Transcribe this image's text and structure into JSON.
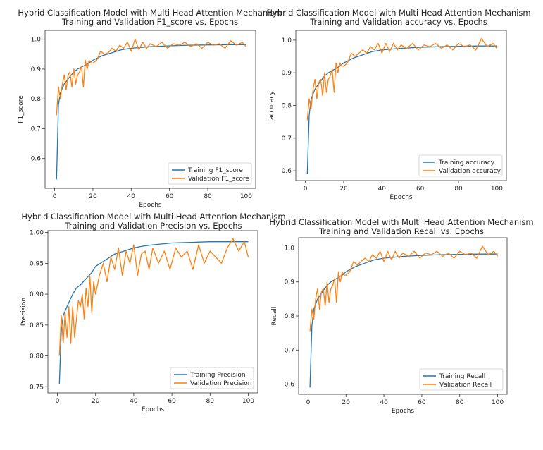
{
  "chart_data": [
    {
      "type": "line",
      "title": "Hybrid Classification Model with Multi Head Attention Mechanism",
      "subtitle": "Training and Validation F1_score vs. Epochs",
      "xlabel": "Epochs",
      "ylabel": "F1_score",
      "xlim": [
        -5,
        105
      ],
      "ylim": [
        0.5,
        1.03
      ],
      "xticks": [
        0,
        20,
        40,
        60,
        80,
        100
      ],
      "yticks": [
        0.6,
        0.7,
        0.8,
        0.9,
        1.0
      ],
      "ytick_labels": [
        "0.6",
        "0.7",
        "0.8",
        "0.9",
        "1.0"
      ],
      "legend": "lower-right",
      "series": [
        {
          "name": "Training F1_score",
          "color": "#1f77b4",
          "x": [
            1,
            2,
            3,
            5,
            8,
            10,
            12,
            15,
            18,
            20,
            25,
            30,
            35,
            40,
            50,
            60,
            70,
            80,
            90,
            100
          ],
          "values": [
            0.53,
            0.78,
            0.82,
            0.85,
            0.875,
            0.89,
            0.9,
            0.91,
            0.92,
            0.93,
            0.945,
            0.955,
            0.965,
            0.97,
            0.975,
            0.978,
            0.98,
            0.981,
            0.982,
            0.982
          ]
        },
        {
          "name": "Validation F1_score",
          "color": "#ff7f0e",
          "x": [
            1,
            2,
            3,
            4,
            5,
            6,
            7,
            8,
            9,
            10,
            11,
            12,
            13,
            14,
            15,
            16,
            17,
            18,
            19,
            20,
            22,
            24,
            26,
            28,
            30,
            32,
            34,
            36,
            38,
            40,
            42,
            44,
            46,
            48,
            50,
            53,
            56,
            59,
            62,
            65,
            68,
            71,
            74,
            77,
            80,
            83,
            86,
            89,
            92,
            95,
            98,
            100
          ],
          "values": [
            0.745,
            0.84,
            0.8,
            0.85,
            0.88,
            0.83,
            0.88,
            0.89,
            0.84,
            0.9,
            0.85,
            0.88,
            0.89,
            0.91,
            0.84,
            0.93,
            0.9,
            0.93,
            0.92,
            0.92,
            0.93,
            0.96,
            0.95,
            0.955,
            0.97,
            0.96,
            0.98,
            0.97,
            0.99,
            0.96,
            1.0,
            0.965,
            0.99,
            0.97,
            0.985,
            0.975,
            0.99,
            0.97,
            0.985,
            0.98,
            0.99,
            0.975,
            0.985,
            0.97,
            0.99,
            0.98,
            0.985,
            0.97,
            0.995,
            0.98,
            0.99,
            0.975
          ]
        }
      ]
    },
    {
      "type": "line",
      "title": "Hybrid Classification Model with Multi Head Attention Mechanism",
      "subtitle": "Training and Validation accuracy vs. Epochs",
      "xlabel": "Epochs",
      "ylabel": "accuracy",
      "xlim": [
        -5,
        105
      ],
      "ylim": [
        0.57,
        1.03
      ],
      "xticks": [
        0,
        20,
        40,
        60,
        80,
        100
      ],
      "yticks": [
        0.6,
        0.7,
        0.8,
        0.9,
        1.0
      ],
      "ytick_labels": [
        "0.6",
        "0.7",
        "0.8",
        "0.9",
        "1.0"
      ],
      "legend": "lower-right",
      "series": [
        {
          "name": "Training accuracy",
          "color": "#1f77b4",
          "x": [
            1,
            2,
            3,
            5,
            8,
            10,
            12,
            15,
            18,
            20,
            25,
            30,
            35,
            40,
            50,
            60,
            70,
            80,
            90,
            100
          ],
          "values": [
            0.59,
            0.77,
            0.82,
            0.85,
            0.875,
            0.89,
            0.9,
            0.91,
            0.92,
            0.93,
            0.945,
            0.955,
            0.965,
            0.97,
            0.975,
            0.978,
            0.98,
            0.981,
            0.982,
            0.982
          ]
        },
        {
          "name": "Validation accuracy",
          "color": "#ff7f0e",
          "x": [
            1,
            2,
            3,
            4,
            5,
            6,
            7,
            8,
            9,
            10,
            11,
            12,
            13,
            14,
            15,
            16,
            17,
            18,
            19,
            20,
            22,
            24,
            26,
            28,
            30,
            32,
            34,
            36,
            38,
            40,
            42,
            44,
            46,
            48,
            50,
            53,
            56,
            59,
            62,
            65,
            68,
            71,
            74,
            77,
            80,
            83,
            86,
            89,
            92,
            95,
            98,
            100
          ],
          "values": [
            0.755,
            0.82,
            0.79,
            0.85,
            0.88,
            0.82,
            0.87,
            0.88,
            0.83,
            0.9,
            0.84,
            0.88,
            0.89,
            0.91,
            0.84,
            0.93,
            0.9,
            0.93,
            0.92,
            0.92,
            0.93,
            0.96,
            0.95,
            0.96,
            0.97,
            0.96,
            0.98,
            0.97,
            0.99,
            0.96,
            0.99,
            0.965,
            0.99,
            0.97,
            0.985,
            0.975,
            0.99,
            0.97,
            0.985,
            0.98,
            0.99,
            0.975,
            0.985,
            0.97,
            0.99,
            0.98,
            0.985,
            0.97,
            1.005,
            0.98,
            0.99,
            0.975
          ]
        }
      ]
    },
    {
      "type": "line",
      "title": "Hybrid Classification Model with Multi Head Attention Mechanism",
      "subtitle": "Training and Validation Precision vs. Epochs",
      "xlabel": "Epochs",
      "ylabel": "Precision",
      "xlim": [
        -5,
        105
      ],
      "ylim": [
        0.74,
        1.003
      ],
      "xticks": [
        0,
        20,
        40,
        60,
        80,
        100
      ],
      "yticks": [
        0.75,
        0.8,
        0.85,
        0.9,
        0.95,
        1.0
      ],
      "ytick_labels": [
        "0.75",
        "0.80",
        "0.85",
        "0.90",
        "0.95",
        "1.00"
      ],
      "legend": "lower-right",
      "series": [
        {
          "name": "Training Precision",
          "color": "#1f77b4",
          "x": [
            1,
            2,
            3,
            5,
            8,
            10,
            12,
            15,
            18,
            20,
            25,
            30,
            35,
            40,
            45,
            50,
            60,
            70,
            80,
            90,
            100
          ],
          "values": [
            0.755,
            0.84,
            0.865,
            0.88,
            0.9,
            0.91,
            0.915,
            0.925,
            0.935,
            0.945,
            0.955,
            0.965,
            0.97,
            0.975,
            0.978,
            0.98,
            0.983,
            0.984,
            0.985,
            0.985,
            0.985
          ]
        },
        {
          "name": "Validation Precision",
          "color": "#ff7f0e",
          "x": [
            1,
            2,
            3,
            4,
            5,
            6,
            7,
            8,
            9,
            10,
            11,
            12,
            13,
            14,
            15,
            16,
            17,
            18,
            19,
            20,
            22,
            24,
            26,
            28,
            30,
            32,
            34,
            36,
            38,
            40,
            42,
            44,
            46,
            48,
            50,
            53,
            56,
            59,
            62,
            65,
            68,
            71,
            74,
            77,
            80,
            83,
            86,
            89,
            92,
            95,
            98,
            100
          ],
          "values": [
            0.8,
            0.865,
            0.82,
            0.87,
            0.83,
            0.88,
            0.82,
            0.88,
            0.83,
            0.86,
            0.89,
            0.88,
            0.9,
            0.86,
            0.91,
            0.88,
            0.93,
            0.87,
            0.92,
            0.9,
            0.93,
            0.95,
            0.92,
            0.96,
            0.94,
            0.975,
            0.93,
            0.97,
            0.95,
            0.98,
            0.93,
            0.965,
            0.97,
            0.94,
            0.975,
            0.95,
            0.97,
            0.94,
            0.975,
            0.96,
            0.97,
            0.94,
            0.98,
            0.95,
            0.97,
            0.96,
            0.95,
            0.975,
            0.99,
            0.97,
            0.985,
            0.96
          ]
        }
      ]
    },
    {
      "type": "line",
      "title": "Hybrid Classification Model with Multi Head Attention Mechanism",
      "subtitle": "Training and Validation Recall vs. Epochs",
      "xlabel": "Epochs",
      "ylabel": "Recall",
      "xlim": [
        -5,
        105
      ],
      "ylim": [
        0.57,
        1.03
      ],
      "xticks": [
        0,
        20,
        40,
        60,
        80,
        100
      ],
      "yticks": [
        0.6,
        0.7,
        0.8,
        0.9,
        1.0
      ],
      "ytick_labels": [
        "0.6",
        "0.7",
        "0.8",
        "0.9",
        "1.0"
      ],
      "legend": "lower-right",
      "series": [
        {
          "name": "Training Recall",
          "color": "#1f77b4",
          "x": [
            1,
            2,
            3,
            5,
            8,
            10,
            12,
            15,
            18,
            20,
            25,
            30,
            35,
            40,
            50,
            60,
            70,
            80,
            90,
            100
          ],
          "values": [
            0.59,
            0.77,
            0.82,
            0.85,
            0.875,
            0.89,
            0.9,
            0.91,
            0.92,
            0.93,
            0.945,
            0.955,
            0.965,
            0.97,
            0.975,
            0.978,
            0.98,
            0.981,
            0.982,
            0.982
          ]
        },
        {
          "name": "Validation Recall",
          "color": "#ff7f0e",
          "x": [
            1,
            2,
            3,
            4,
            5,
            6,
            7,
            8,
            9,
            10,
            11,
            12,
            13,
            14,
            15,
            16,
            17,
            18,
            19,
            20,
            22,
            24,
            26,
            28,
            30,
            32,
            34,
            36,
            38,
            40,
            42,
            44,
            46,
            48,
            50,
            53,
            56,
            59,
            62,
            65,
            68,
            71,
            74,
            77,
            80,
            83,
            86,
            89,
            92,
            95,
            98,
            100
          ],
          "values": [
            0.755,
            0.82,
            0.79,
            0.85,
            0.88,
            0.82,
            0.87,
            0.88,
            0.83,
            0.9,
            0.84,
            0.88,
            0.89,
            0.91,
            0.84,
            0.93,
            0.9,
            0.93,
            0.92,
            0.92,
            0.93,
            0.96,
            0.95,
            0.96,
            0.97,
            0.96,
            0.98,
            0.97,
            0.99,
            0.96,
            0.99,
            0.965,
            0.99,
            0.97,
            0.985,
            0.975,
            0.99,
            0.97,
            0.985,
            0.98,
            0.99,
            0.975,
            0.985,
            0.97,
            0.99,
            0.98,
            0.985,
            0.97,
            1.005,
            0.98,
            0.99,
            0.975
          ]
        }
      ]
    }
  ]
}
